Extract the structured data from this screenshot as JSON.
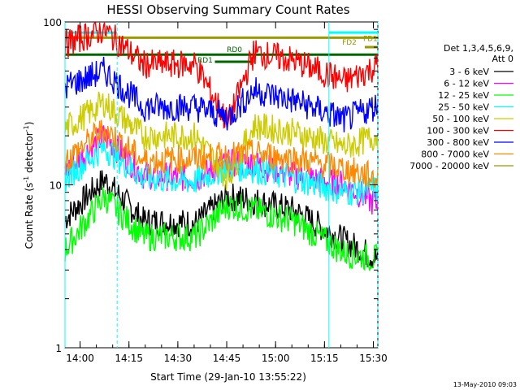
{
  "chart_data": {
    "type": "line",
    "title": "HESSI Observing Summary Count Rates",
    "xlabel": "Start Time (29-Jan-10 13:55:22)",
    "ylabel_main": "Count Rate (s",
    "ylabel_sup1": "-1",
    "ylabel_mid": " detector",
    "ylabel_sup2": "-1",
    "ylabel_end": ")",
    "yscale": "log",
    "ylim": [
      1,
      100
    ],
    "xlim_min": [
      0,
      96
    ],
    "x_tick_labels": [
      "14:00",
      "14:15",
      "14:30",
      "14:45",
      "15:00",
      "15:15",
      "15:30"
    ],
    "x_tick_min": [
      4.63,
      19.63,
      34.63,
      49.63,
      64.63,
      79.63,
      94.63
    ],
    "y_tick_labels": [
      "1",
      "10",
      "100"
    ],
    "y_tick_values": [
      1,
      10,
      100
    ],
    "legend_header": [
      "Det 1,3,4,5,6,9,",
      "Att 0"
    ],
    "legend_placement": "right",
    "timestamp": "13-May-2010 09:03",
    "series": [
      {
        "name": "3 - 6 keV",
        "color": "#000000",
        "values": [
          6.2,
          10.8,
          6.0,
          5.8,
          8.5,
          8.0,
          7.0,
          4.5,
          3.5
        ]
      },
      {
        "name": "6 - 12 keV",
        "color": "#ff00ff",
        "values": [
          12.0,
          20.0,
          11.5,
          11.0,
          13.5,
          13.5,
          11.5,
          10.0,
          7.5
        ]
      },
      {
        "name": "12 - 25 keV",
        "color": "#00ff00",
        "values": [
          4.0,
          8.5,
          4.8,
          4.8,
          7.5,
          7.0,
          6.0,
          3.8,
          3.5
        ]
      },
      {
        "name": "25 - 50 keV",
        "color": "#00ffff",
        "values": [
          11.0,
          17.0,
          11.0,
          10.5,
          13.0,
          12.5,
          11.0,
          9.0,
          9.5
        ]
      },
      {
        "name": "50 - 100 keV",
        "color": "#cccc00",
        "values": [
          22.0,
          32.0,
          20.0,
          20.0,
          11.0,
          23.0,
          21.0,
          17.0,
          20.0
        ]
      },
      {
        "name": "100 - 300 keV",
        "color": "#ff0000",
        "values": [
          73.0,
          90.0,
          55.0,
          55.0,
          24.0,
          65.0,
          58.0,
          43.0,
          54.0
        ]
      },
      {
        "name": "300 - 800 keV",
        "color": "#0000ff",
        "values": [
          40.0,
          50.0,
          30.0,
          30.0,
          26.0,
          38.0,
          33.0,
          25.0,
          31.0
        ]
      },
      {
        "name": "800 - 7000 keV",
        "color": "#ff8800",
        "values": [
          14.0,
          22.0,
          14.0,
          14.5,
          15.0,
          15.5,
          14.5,
          12.5,
          11.0
        ]
      },
      {
        "name": "7000 - 20000 keV",
        "color": "#999900",
        "values": [
          null,
          null,
          null,
          null,
          null,
          null,
          null,
          null,
          null
        ]
      }
    ],
    "x_min": [
      0,
      12,
      24,
      40,
      50,
      58,
      70,
      86,
      96
    ],
    "annotations": [
      {
        "text": "FD1",
        "color": "#999900",
        "level": 80
      },
      {
        "text": "FD2",
        "color": "#999900",
        "level": 70
      },
      {
        "text": "RD0",
        "color": "#006600",
        "level": 63
      },
      {
        "text": "RD1",
        "color": "#006600",
        "level": 57
      }
    ],
    "flag_bars": [
      {
        "color": "#999900",
        "level": 80,
        "x0": 0,
        "x1": 96
      },
      {
        "color": "#999900",
        "level": 70,
        "x0": 92,
        "x1": 96
      },
      {
        "color": "#006600",
        "level": 63,
        "x0": 0,
        "x1": 96
      },
      {
        "color": "#006600",
        "level": 57,
        "x0": 46,
        "x1": 58
      },
      {
        "color": "#00ffff",
        "level": 86,
        "x0": 0,
        "x1": 16
      },
      {
        "color": "#00ffff",
        "level": 86,
        "x0": 81,
        "x1": 96
      }
    ],
    "vlines": [
      {
        "x": 0,
        "color": "#00ffff",
        "style": "solid"
      },
      {
        "x": 16,
        "color": "#00ffff",
        "style": "dashed"
      },
      {
        "x": 81,
        "color": "#00ffff",
        "style": "solid"
      },
      {
        "x": 96,
        "color": "#00ffff",
        "style": "dashed"
      }
    ]
  }
}
